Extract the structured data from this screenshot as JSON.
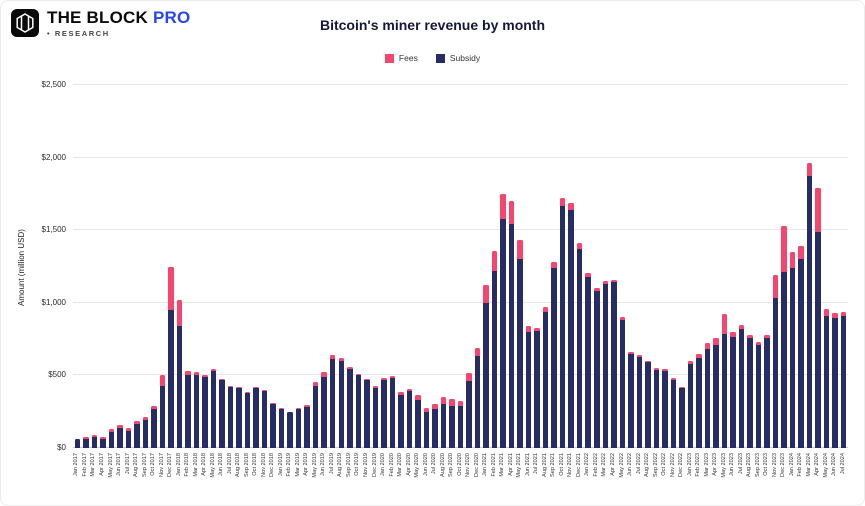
{
  "header": {
    "brand": "THE BLOCK",
    "brand_pro": "PRO",
    "brand_sub": "• RESEARCH"
  },
  "chart": {
    "title": "Bitcoin's miner revenue by month",
    "legend": [
      {
        "label": "Fees",
        "color": "#f4466f"
      },
      {
        "label": "Subsidy",
        "color": "#282c64"
      }
    ]
  },
  "chart_data": {
    "type": "bar",
    "stacked": true,
    "title": "Bitcoin's miner revenue by month",
    "xlabel": "",
    "ylabel": "Amount (million USD)",
    "ylim": [
      0,
      2500
    ],
    "yticks": [
      "$0",
      "$500",
      "$1,000",
      "$1,500",
      "$2,000",
      "$2,500"
    ],
    "ytick_values": [
      0,
      500,
      1000,
      1500,
      2000,
      2500
    ],
    "grid": "horizontal",
    "legend_position": "top",
    "categories": [
      "Jan 2017",
      "Feb 2017",
      "Mar 2017",
      "Apr 2017",
      "May 2017",
      "Jun 2017",
      "Jul 2017",
      "Aug 2017",
      "Sep 2017",
      "Oct 2017",
      "Nov 2017",
      "Dec 2017",
      "Jan 2018",
      "Feb 2018",
      "Mar 2018",
      "Apr 2018",
      "May 2018",
      "Jun 2018",
      "Jul 2018",
      "Aug 2018",
      "Sep 2018",
      "Oct 2018",
      "Nov 2018",
      "Dec 2018",
      "Jan 2019",
      "Feb 2019",
      "Mar 2019",
      "Apr 2019",
      "May 2019",
      "Jun 2019",
      "Jul 2019",
      "Aug 2019",
      "Sep 2019",
      "Oct 2019",
      "Nov 2019",
      "Dec 2019",
      "Jan 2020",
      "Feb 2020",
      "Mar 2020",
      "Apr 2020",
      "May 2020",
      "Jun 2020",
      "Jul 2020",
      "Aug 2020",
      "Sep 2020",
      "Oct 2020",
      "Nov 2020",
      "Dec 2020",
      "Jan 2021",
      "Feb 2021",
      "Mar 2021",
      "Apr 2021",
      "May 2021",
      "Jun 2021",
      "Jul 2021",
      "Aug 2021",
      "Sep 2021",
      "Oct 2021",
      "Nov 2021",
      "Dec 2021",
      "Jan 2022",
      "Feb 2022",
      "Mar 2022",
      "Apr 2022",
      "May 2022",
      "Jun 2022",
      "Jul 2022",
      "Aug 2022",
      "Sep 2022",
      "Oct 2022",
      "Nov 2022",
      "Dec 2022",
      "Jan 2023",
      "Feb 2023",
      "Mar 2023",
      "Apr 2023",
      "May 2023",
      "Jun 2023",
      "Jul 2023",
      "Aug 2023",
      "Sep 2023",
      "Oct 2023",
      "Nov 2023",
      "Dec 2023",
      "Jan 2024",
      "Feb 2024",
      "Mar 2024",
      "Apr 2024",
      "May 2024",
      "Jun 2024",
      "Jul 2024"
    ],
    "series": [
      {
        "name": "Subsidy",
        "color": "#282c64",
        "values": [
          60,
          65,
          75,
          65,
          110,
          135,
          120,
          165,
          190,
          270,
          430,
          950,
          840,
          500,
          500,
          490,
          530,
          465,
          420,
          410,
          380,
          410,
          390,
          300,
          270,
          245,
          270,
          285,
          430,
          490,
          610,
          600,
          545,
          500,
          465,
          415,
          470,
          480,
          365,
          390,
          330,
          245,
          270,
          300,
          290,
          290,
          460,
          635,
          1000,
          1220,
          1580,
          1540,
          1300,
          800,
          805,
          940,
          1240,
          1670,
          1640,
          1370,
          1180,
          1080,
          1130,
          1140,
          885,
          645,
          630,
          590,
          540,
          530,
          470,
          410,
          580,
          620,
          680,
          710,
          785,
          765,
          820,
          760,
          710,
          755,
          1030,
          1210,
          1240,
          1305,
          1875,
          1490,
          910,
          895,
          910
        ]
      },
      {
        "name": "Fees",
        "color": "#f4466f",
        "values": [
          5,
          8,
          12,
          8,
          20,
          25,
          15,
          20,
          25,
          20,
          70,
          300,
          180,
          30,
          25,
          15,
          15,
          10,
          10,
          10,
          8,
          8,
          10,
          10,
          6,
          5,
          6,
          10,
          25,
          35,
          30,
          20,
          15,
          12,
          12,
          10,
          12,
          15,
          20,
          15,
          35,
          30,
          30,
          50,
          50,
          35,
          60,
          55,
          120,
          140,
          170,
          160,
          130,
          40,
          25,
          30,
          40,
          50,
          50,
          40,
          25,
          20,
          20,
          20,
          20,
          15,
          12,
          10,
          12,
          12,
          15,
          10,
          20,
          30,
          45,
          45,
          135,
          35,
          30,
          20,
          20,
          25,
          160,
          320,
          110,
          85,
          85,
          300,
          50,
          35,
          30
        ]
      }
    ]
  }
}
